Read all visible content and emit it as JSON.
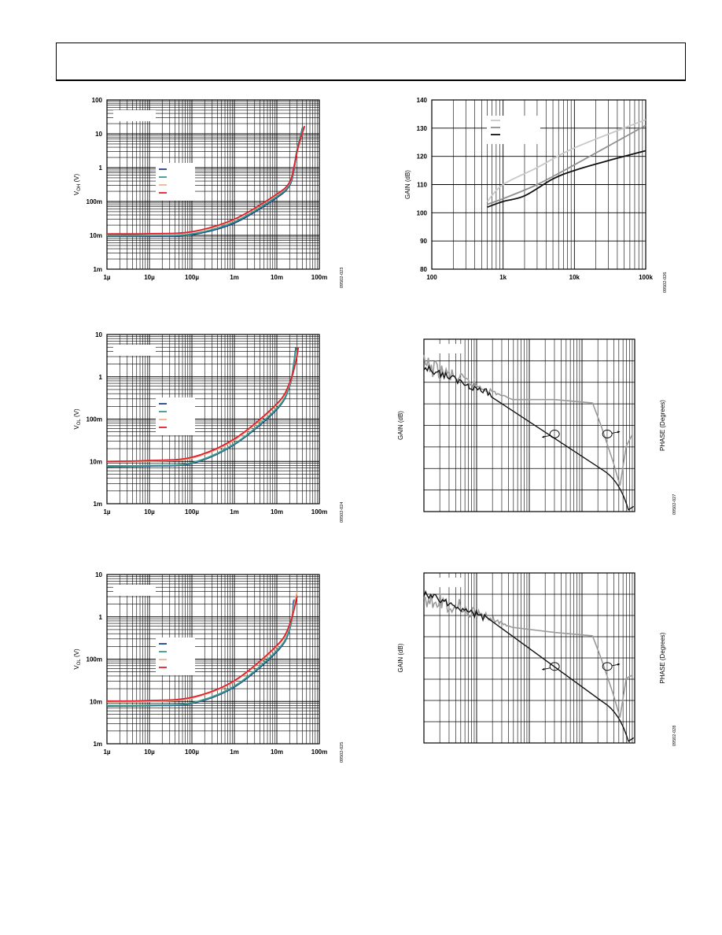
{
  "header": {
    "text": ""
  },
  "chart_data": [
    {
      "id": "voh",
      "type": "line",
      "ylabel_main": "V",
      "ylabel_sub": "OH",
      "ylabel_unit": " (V)",
      "x_scale": "log",
      "y_scale": "log",
      "xlim": [
        1e-06,
        0.1
      ],
      "ylim": [
        0.001,
        100
      ],
      "x_tick_labels": [
        "1µ",
        "10µ",
        "100µ",
        "1m",
        "10m",
        "100m"
      ],
      "y_tick_labels": [
        "1m",
        "10m",
        "100m",
        "1",
        "10",
        "100"
      ],
      "figure_id": "09502-023",
      "series": [
        {
          "color": "#1f3f8f",
          "values": [
            [
              1e-06,
              0.0096
            ],
            [
              1e-05,
              0.0096
            ],
            [
              0.0001,
              0.0105
            ],
            [
              0.001,
              0.023
            ],
            [
              0.01,
              0.13
            ],
            [
              0.02,
              0.3
            ],
            [
              0.025,
              0.8
            ],
            [
              0.03,
              3
            ],
            [
              0.04,
              15
            ]
          ]
        },
        {
          "color": "#3a9a8a",
          "values": [
            [
              1e-06,
              0.0097
            ],
            [
              1e-05,
              0.0098
            ],
            [
              0.0001,
              0.011
            ],
            [
              0.001,
              0.025
            ],
            [
              0.01,
              0.14
            ],
            [
              0.02,
              0.32
            ],
            [
              0.025,
              0.9
            ],
            [
              0.03,
              3.5
            ],
            [
              0.042,
              16
            ]
          ]
        },
        {
          "color": "#f2b48c",
          "values": [
            [
              1e-06,
              0.0108
            ],
            [
              1e-05,
              0.011
            ],
            [
              0.0001,
              0.0125
            ],
            [
              0.001,
              0.029
            ],
            [
              0.01,
              0.16
            ],
            [
              0.02,
              0.36
            ],
            [
              0.025,
              0.95
            ],
            [
              0.032,
              4
            ],
            [
              0.045,
              17
            ]
          ]
        },
        {
          "color": "#e0202e",
          "values": [
            [
              1e-06,
              0.011
            ],
            [
              1e-05,
              0.0112
            ],
            [
              0.0001,
              0.0128
            ],
            [
              0.001,
              0.03
            ],
            [
              0.01,
              0.165
            ],
            [
              0.02,
              0.37
            ],
            [
              0.025,
              1.0
            ],
            [
              0.032,
              4.2
            ],
            [
              0.045,
              17
            ]
          ]
        }
      ]
    },
    {
      "id": "vol1",
      "type": "line",
      "ylabel_main": "V",
      "ylabel_sub": "OL",
      "ylabel_unit": " (V)",
      "x_scale": "log",
      "y_scale": "log",
      "xlim": [
        1e-06,
        0.1
      ],
      "ylim": [
        0.001,
        10
      ],
      "x_tick_labels": [
        "1µ",
        "10µ",
        "100µ",
        "1m",
        "10m",
        "100m"
      ],
      "y_tick_labels": [
        "1m",
        "10m",
        "100m",
        "1",
        "10"
      ],
      "figure_id": "09502-024",
      "series": [
        {
          "color": "#1f3f8f",
          "values": [
            [
              1e-06,
              0.0075
            ],
            [
              1e-05,
              0.0078
            ],
            [
              0.0001,
              0.009
            ],
            [
              0.001,
              0.025
            ],
            [
              0.01,
              0.17
            ],
            [
              0.02,
              0.6
            ],
            [
              0.025,
              2
            ],
            [
              0.028,
              5
            ]
          ]
        },
        {
          "color": "#3a9a8a",
          "values": [
            [
              1e-06,
              0.0078
            ],
            [
              1e-05,
              0.008
            ],
            [
              0.0001,
              0.0093
            ],
            [
              0.001,
              0.026
            ],
            [
              0.01,
              0.18
            ],
            [
              0.02,
              0.62
            ],
            [
              0.025,
              2.1
            ],
            [
              0.029,
              5
            ]
          ]
        },
        {
          "color": "#f2b48c",
          "values": [
            [
              1e-06,
              0.0098
            ],
            [
              1e-05,
              0.0102
            ],
            [
              0.0001,
              0.012
            ],
            [
              0.001,
              0.032
            ],
            [
              0.01,
              0.22
            ],
            [
              0.02,
              0.7
            ],
            [
              0.028,
              2.3
            ],
            [
              0.032,
              5
            ]
          ]
        },
        {
          "color": "#e0202e",
          "values": [
            [
              1e-06,
              0.01
            ],
            [
              1e-05,
              0.0105
            ],
            [
              0.0001,
              0.0125
            ],
            [
              0.001,
              0.034
            ],
            [
              0.01,
              0.23
            ],
            [
              0.02,
              0.72
            ],
            [
              0.028,
              2.3
            ],
            [
              0.032,
              5
            ]
          ]
        }
      ]
    },
    {
      "id": "vol2",
      "type": "line",
      "ylabel_main": "V",
      "ylabel_sub": "OL",
      "ylabel_unit": " (V)",
      "x_scale": "log",
      "y_scale": "log",
      "xlim": [
        1e-06,
        0.1
      ],
      "ylim": [
        0.001,
        10
      ],
      "x_tick_labels": [
        "1µ",
        "10µ",
        "100µ",
        "1m",
        "10m",
        "100m"
      ],
      "y_tick_labels": [
        "1m",
        "10m",
        "100m",
        "1",
        "10"
      ],
      "figure_id": "09502-025",
      "series": [
        {
          "color": "#1f3f8f",
          "values": [
            [
              1e-06,
              0.0078
            ],
            [
              1e-05,
              0.008
            ],
            [
              0.0001,
              0.009
            ],
            [
              0.001,
              0.022
            ],
            [
              0.01,
              0.15
            ],
            [
              0.02,
              0.5
            ],
            [
              0.025,
              2.5
            ]
          ]
        },
        {
          "color": "#3a9a8a",
          "values": [
            [
              1e-06,
              0.008
            ],
            [
              1e-05,
              0.0082
            ],
            [
              0.0001,
              0.0093
            ],
            [
              0.001,
              0.023
            ],
            [
              0.01,
              0.16
            ],
            [
              0.02,
              0.52
            ],
            [
              0.026,
              2.6
            ]
          ]
        },
        {
          "color": "#f2b48c",
          "values": [
            [
              1e-06,
              0.0098
            ],
            [
              1e-05,
              0.01
            ],
            [
              0.0001,
              0.012
            ],
            [
              0.001,
              0.03
            ],
            [
              0.01,
              0.2
            ],
            [
              0.02,
              0.65
            ],
            [
              0.03,
              4
            ]
          ]
        },
        {
          "color": "#e0202e",
          "values": [
            [
              1e-06,
              0.0102
            ],
            [
              1e-05,
              0.0105
            ],
            [
              0.0001,
              0.0125
            ],
            [
              0.001,
              0.031
            ],
            [
              0.01,
              0.21
            ],
            [
              0.02,
              0.66
            ],
            [
              0.03,
              3
            ]
          ]
        }
      ]
    },
    {
      "id": "gain",
      "type": "line",
      "ylabel": "GAIN (dB)",
      "x_scale": "log",
      "y_scale": "linear",
      "xlim": [
        100,
        100000
      ],
      "ylim": [
        80,
        140
      ],
      "x_tick_labels": [
        "100",
        "1k",
        "10k",
        "100k"
      ],
      "y_tick_labels": [
        "80",
        "90",
        "100",
        "110",
        "120",
        "130",
        "140"
      ],
      "figure_id": "09502-026",
      "series": [
        {
          "color": "#c8c8c8",
          "values": [
            [
              600,
              104
            ],
            [
              1000,
              110
            ],
            [
              3000,
              116
            ],
            [
              10000,
              123
            ],
            [
              100000,
              133
            ]
          ]
        },
        {
          "color": "#909090",
          "values": [
            [
              600,
              103
            ],
            [
              1000,
              105
            ],
            [
              3000,
              110
            ],
            [
              10000,
              117
            ],
            [
              100000,
              131
            ]
          ]
        },
        {
          "color": "#111111",
          "values": [
            [
              600,
              102
            ],
            [
              1000,
              104
            ],
            [
              2000,
              106
            ],
            [
              5000,
              112
            ],
            [
              10000,
              115
            ],
            [
              30000,
              118.5
            ],
            [
              100000,
              122
            ]
          ]
        }
      ]
    },
    {
      "id": "bode1",
      "type": "line",
      "ylabel": "GAIN (dB)",
      "y2label": "PHASE (Degrees)",
      "x_scale": "log",
      "figure_id": "09502-027",
      "series": [
        {
          "color": "#111111",
          "kind": "gain"
        },
        {
          "color": "#9a9a9a",
          "kind": "phase"
        }
      ]
    },
    {
      "id": "bode2",
      "type": "line",
      "ylabel": "GAIN (dB)",
      "y2label": "PHASE (Degrees)",
      "x_scale": "log",
      "figure_id": "09502-028",
      "series": [
        {
          "color": "#111111",
          "kind": "gain"
        },
        {
          "color": "#9a9a9a",
          "kind": "phase"
        }
      ]
    }
  ]
}
